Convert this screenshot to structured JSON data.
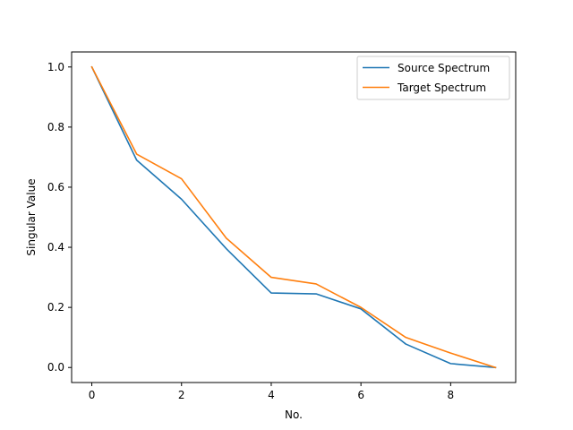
{
  "chart_data": {
    "type": "line",
    "title": "",
    "xlabel": "No.",
    "ylabel": "Singular Value",
    "x": [
      0,
      1,
      2,
      3,
      4,
      5,
      6,
      7,
      8,
      9
    ],
    "xlim": [
      -0.45,
      9.45
    ],
    "ylim": [
      -0.05,
      1.05
    ],
    "xticks": [
      0,
      2,
      4,
      6,
      8
    ],
    "xtick_labels": [
      "0",
      "2",
      "4",
      "6",
      "8"
    ],
    "yticks": [
      0.0,
      0.2,
      0.4,
      0.6,
      0.8,
      1.0
    ],
    "ytick_labels": [
      "0.0",
      "0.2",
      "0.4",
      "0.6",
      "0.8",
      "1.0"
    ],
    "grid": false,
    "legend_position": "top-right",
    "series": [
      {
        "name": "Source Spectrum",
        "color": "#1f77b4",
        "values": [
          1.0,
          0.69,
          0.56,
          0.395,
          0.248,
          0.245,
          0.195,
          0.078,
          0.013,
          0.0
        ]
      },
      {
        "name": "Target Spectrum",
        "color": "#ff7f0e",
        "values": [
          1.0,
          0.71,
          0.628,
          0.43,
          0.3,
          0.278,
          0.2,
          0.1,
          0.048,
          0.0
        ]
      }
    ]
  }
}
